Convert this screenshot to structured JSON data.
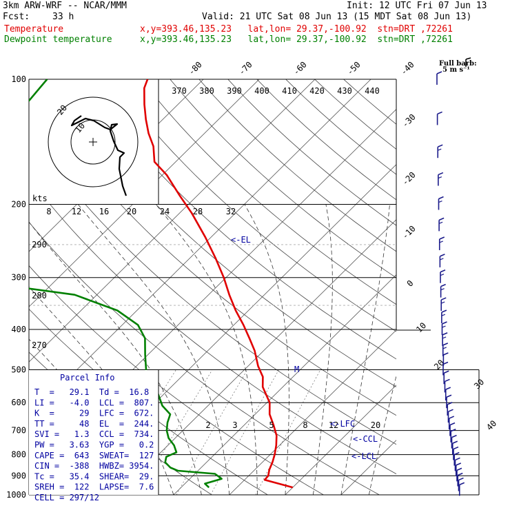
{
  "header": {
    "model": "3km ARW-WRF -- NCAR/MMM",
    "init": "Init: 12 UTC Fri 07 Jun 13",
    "fcst_label": "Fcst:",
    "fcst_value": "33 h",
    "valid": "Valid: 21 UTC Sat 08 Jun 13 (15 MDT Sat 08 Jun 13)",
    "temp_label": "Temperature",
    "temp_info": "x,y=393.46,135.23   lat,lon= 29.37,-100.92  stn=DRT ,72261",
    "dew_label": "Dewpoint temperature",
    "dew_info": "x,y=393.46,135.23   lat,lon= 29.37,-100.92  stn=DRT ,72261",
    "full_barb": "Full barb:",
    "barb_unit": "5 m s⁻¹"
  },
  "hodograph": {
    "units": "kts",
    "ring_label": "20",
    "inner_label": "10"
  },
  "parcel_info": {
    "title": "Parcel Info",
    "rows": [
      "T  =   29.1  Td =  16.8",
      "LI =   -4.0  LCL =  807.",
      "K  =     29  LFC =  672.",
      "TT =     48  EL  =  244.",
      "SVI =   1.3  CCL =  734.",
      "PW =   3.63  YGP =   0.2",
      "CAPE =  643  SWEAT=  127",
      "CIN =  -388  HWBZ= 3954.",
      "Tc =   35.4  SHEAR=  29.",
      "SREH =  122  LAPSE=  7.6",
      "CELL = 297/12"
    ]
  },
  "level_markers": {
    "el": "<-EL",
    "lfc": "<-LFC",
    "ccl": "<-CCL",
    "lcl": "<-LCL",
    "m": "M"
  },
  "chart_data": {
    "type": "line",
    "title": "",
    "xlabel": "",
    "ylabel": "",
    "ylim": [
      1000,
      100
    ],
    "y_scale": "log (pressure, hPa)",
    "pressure_ticks": [
      100,
      200,
      300,
      400,
      500,
      600,
      700,
      800,
      900,
      1000
    ],
    "isotherm_labels": [
      "-80",
      "-70",
      "-60",
      "-50",
      "-40",
      "-30",
      "-20",
      "-10",
      "0",
      "10",
      "20",
      "30",
      "40"
    ],
    "theta_e_labels": [
      "370",
      "380",
      "390",
      "400",
      "410",
      "420",
      "430",
      "440"
    ],
    "mixing_ratio_labels": [
      "2",
      "3",
      "5",
      "8",
      "12",
      "20"
    ],
    "theta_labels": [
      "290",
      "280",
      "270"
    ],
    "hodo_speed_labels": [
      "8",
      "12",
      "16",
      "20",
      "24",
      "28",
      "32"
    ],
    "colors": {
      "temperature": "#e00000",
      "dewpoint": "#008000",
      "wind": "#1a1a8a"
    },
    "series": [
      {
        "name": "Temperature",
        "points": [
          [
            960,
            30.0
          ],
          [
            935,
            26.0
          ],
          [
            920,
            23.6
          ],
          [
            900,
            23.5
          ],
          [
            870,
            22.6
          ],
          [
            835,
            21.8
          ],
          [
            800,
            20.8
          ],
          [
            760,
            19.4
          ],
          [
            720,
            17.7
          ],
          [
            680,
            15.3
          ],
          [
            640,
            12.6
          ],
          [
            600,
            10.5
          ],
          [
            550,
            6.4
          ],
          [
            520,
            4.6
          ],
          [
            490,
            1.8
          ],
          [
            450,
            -1.6
          ],
          [
            420,
            -4.8
          ],
          [
            390,
            -8.3
          ],
          [
            360,
            -12.3
          ],
          [
            330,
            -16.3
          ],
          [
            300,
            -20.4
          ],
          [
            270,
            -25.3
          ],
          [
            240,
            -31.0
          ],
          [
            210,
            -37.8
          ],
          [
            190,
            -43.3
          ],
          [
            170,
            -49.2
          ],
          [
            158,
            -53.8
          ],
          [
            145,
            -56.8
          ],
          [
            135,
            -60.0
          ],
          [
            125,
            -63.0
          ],
          [
            115,
            -66.0
          ],
          [
            105,
            -69.0
          ],
          [
            100,
            -70.0
          ]
        ]
      },
      {
        "name": "Dewpoint temperature",
        "points": [
          [
            960,
            15.0
          ],
          [
            940,
            13.6
          ],
          [
            915,
            15.7
          ],
          [
            890,
            13.6
          ],
          [
            875,
            6.4
          ],
          [
            860,
            4.5
          ],
          [
            835,
            2.6
          ],
          [
            810,
            1.8
          ],
          [
            790,
            2.8
          ],
          [
            760,
            1.1
          ],
          [
            730,
            -1.2
          ],
          [
            700,
            -2.9
          ],
          [
            670,
            -4.2
          ],
          [
            640,
            -5.2
          ],
          [
            610,
            -8.2
          ],
          [
            570,
            -11.2
          ],
          [
            540,
            -15.3
          ],
          [
            500,
            -17.6
          ],
          [
            460,
            -20.5
          ],
          [
            420,
            -23.5
          ],
          [
            390,
            -27.2
          ],
          [
            360,
            -33.5
          ],
          [
            330,
            -44.0
          ],
          [
            310,
            -61.0
          ],
          [
            283,
            -77.0
          ],
          [
            260,
            -80.0
          ],
          [
            230,
            -81.0
          ],
          [
            200,
            -82.0
          ],
          [
            170,
            -84.0
          ],
          [
            140,
            -86.0
          ],
          [
            120,
            -87.0
          ],
          [
            100,
            -88.0
          ]
        ]
      }
    ],
    "wind_barbs": {
      "units": "m s-1",
      "pressures": [
        975,
        950,
        925,
        900,
        875,
        850,
        825,
        800,
        775,
        750,
        725,
        700,
        675,
        650,
        625,
        600,
        575,
        550,
        525,
        500,
        475,
        450,
        425,
        400,
        375,
        350,
        325,
        300,
        275,
        250,
        225,
        200,
        175,
        150,
        125,
        100
      ]
    }
  }
}
